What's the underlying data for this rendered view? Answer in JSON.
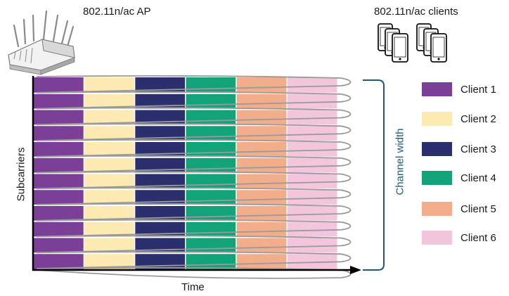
{
  "ap_label": "802.11n/ac AP",
  "clients_label": "802.11n/ac clients",
  "y_axis_label": "Subcarriers",
  "x_axis_label": "Time",
  "bracket_label": "Channel width",
  "clients": [
    {
      "label": "Client 1",
      "color": "#7b3f98"
    },
    {
      "label": "Client 2",
      "color": "#fdeab2"
    },
    {
      "label": "Client 3",
      "color": "#2b2f6e"
    },
    {
      "label": "Client 4",
      "color": "#12a37a"
    },
    {
      "label": "Client 5",
      "color": "#f2ad8a"
    },
    {
      "label": "Client 6",
      "color": "#f4c6de"
    }
  ],
  "subcarrier_rows": 12,
  "colors": {
    "axis": "#000000",
    "bracket": "#1f5a7a",
    "coil": "#9a9a9a",
    "row_separator": "#ffffff"
  },
  "icons": {
    "ap": "wifi-router-icon",
    "clients": "smartphone-icon"
  }
}
